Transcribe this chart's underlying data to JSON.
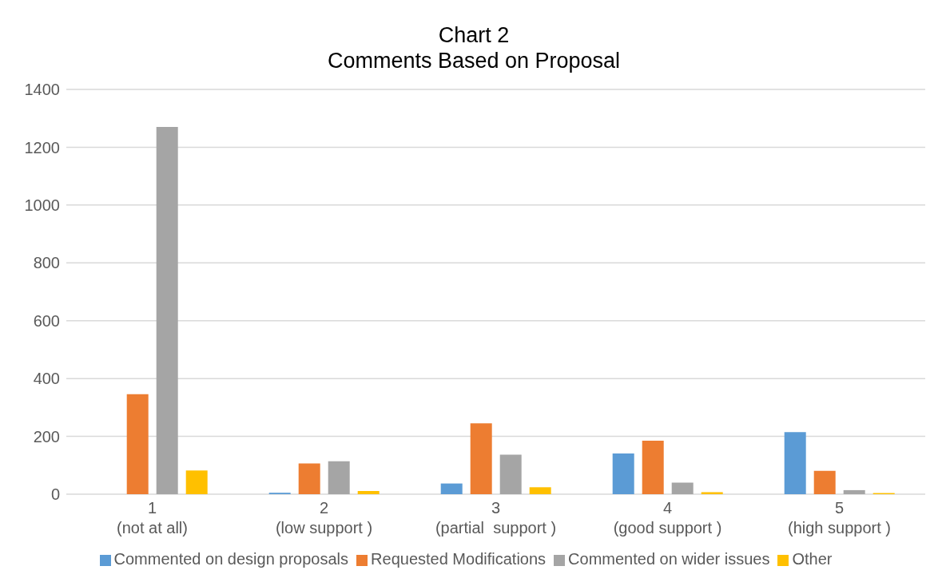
{
  "chart_data": {
    "type": "bar",
    "title": "Chart 2\nComments Based on Proposal",
    "categories": [
      "1\n(not at all)",
      "2\n(low support )",
      "3\n(partial  support )",
      "4\n(good support )",
      "5\n(high support )"
    ],
    "series": [
      {
        "name": "Commented on design proposals",
        "color": "#5b9bd5",
        "values": [
          0,
          5,
          37,
          141,
          215
        ]
      },
      {
        "name": "Requested Modifications",
        "color": "#ed7d31",
        "values": [
          346,
          106,
          245,
          185,
          81
        ]
      },
      {
        "name": "Commented on wider issues",
        "color": "#a5a5a5",
        "values": [
          1270,
          114,
          137,
          40,
          14
        ]
      },
      {
        "name": "Other",
        "color": "#ffc000",
        "values": [
          82,
          11,
          24,
          7,
          4
        ]
      }
    ],
    "ylim": [
      0,
      1400
    ],
    "yticks": [
      0,
      200,
      400,
      600,
      800,
      1000,
      1200,
      1400
    ],
    "grid": "y",
    "legend": "bottom"
  }
}
